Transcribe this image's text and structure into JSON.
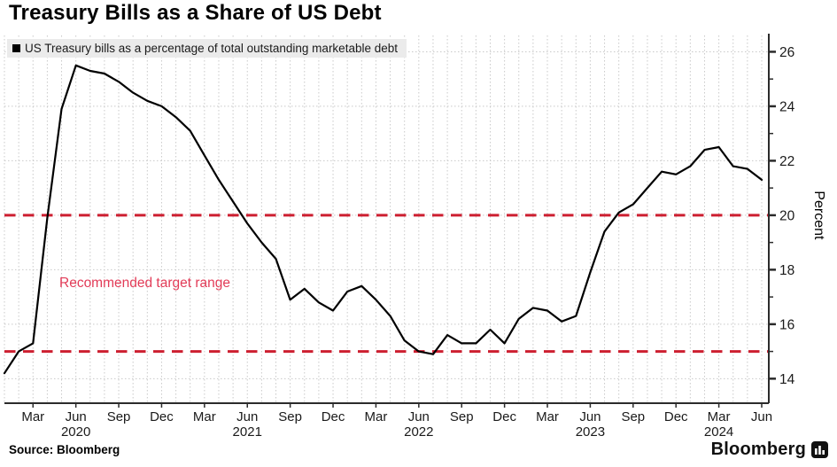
{
  "title": "Treasury Bills as a Share of US Debt",
  "legend": {
    "swatch": "black-square-swatch",
    "label": "US Treasury bills as a percentage of total outstanding marketable debt"
  },
  "annotation": {
    "text": "Recommended target range",
    "color": "#e23b57"
  },
  "source_line": "Source:  Bloomberg",
  "branding": {
    "wordmark": "Bloomberg",
    "icon": "bloomberg-bars-icon"
  },
  "colors": {
    "line": "#000000",
    "reference": "#cd1f30",
    "grid": "#c9c9c9",
    "axis": "#2b2b2b",
    "tick_text": "#1a1a1a",
    "legend_bg": "#ebebeb"
  },
  "chart_data": {
    "type": "line",
    "title": "Treasury Bills as a Share of US Debt",
    "ylabel": "Percent",
    "ylim": [
      13.1,
      26.6
    ],
    "yticks_major": [
      14,
      16,
      18,
      20,
      22,
      24,
      26
    ],
    "yticks_minor": [
      15,
      17,
      19,
      21,
      23,
      25
    ],
    "grid": "dotted, vertical line each month, horizontal line each major tick",
    "legend_position": "top-left",
    "reference_lines": [
      {
        "value": 20,
        "style": "dashed",
        "color": "#cd1f30",
        "label": "recommended range upper"
      },
      {
        "value": 15,
        "style": "dashed",
        "color": "#cd1f30",
        "label": "recommended range lower"
      }
    ],
    "x": [
      "2020-01",
      "2020-02",
      "2020-03",
      "2020-04",
      "2020-05",
      "2020-06",
      "2020-07",
      "2020-08",
      "2020-09",
      "2020-10",
      "2020-11",
      "2020-12",
      "2021-01",
      "2021-02",
      "2021-03",
      "2021-04",
      "2021-05",
      "2021-06",
      "2021-07",
      "2021-08",
      "2021-09",
      "2021-10",
      "2021-11",
      "2021-12",
      "2022-01",
      "2022-02",
      "2022-03",
      "2022-04",
      "2022-05",
      "2022-06",
      "2022-07",
      "2022-08",
      "2022-09",
      "2022-10",
      "2022-11",
      "2022-12",
      "2023-01",
      "2023-02",
      "2023-03",
      "2023-04",
      "2023-05",
      "2023-06",
      "2023-07",
      "2023-08",
      "2023-09",
      "2023-10",
      "2023-11",
      "2023-12",
      "2024-01",
      "2024-02",
      "2024-03",
      "2024-04",
      "2024-05",
      "2024-06"
    ],
    "series": [
      {
        "name": "US Treasury bills as a percentage of total outstanding marketable debt",
        "color": "#000000",
        "values": [
          14.2,
          15.0,
          15.3,
          19.9,
          23.9,
          25.5,
          25.3,
          25.2,
          24.9,
          24.5,
          24.2,
          24.0,
          23.6,
          23.1,
          22.2,
          21.3,
          20.5,
          19.7,
          19.0,
          18.4,
          16.9,
          17.3,
          16.8,
          16.5,
          17.2,
          17.4,
          16.9,
          16.3,
          15.4,
          15.0,
          14.9,
          15.6,
          15.3,
          15.3,
          15.8,
          15.3,
          16.2,
          16.6,
          16.5,
          16.1,
          16.3,
          17.9,
          19.4,
          20.1,
          20.4,
          21.0,
          21.6,
          21.5,
          21.8,
          22.4,
          22.5,
          21.8,
          21.7,
          21.3
        ]
      }
    ],
    "xticks": [
      {
        "label": "Mar",
        "index": 2
      },
      {
        "label": "Jun",
        "index": 5
      },
      {
        "label": "Sep",
        "index": 8
      },
      {
        "label": "Dec",
        "index": 11
      },
      {
        "label": "Mar",
        "index": 14
      },
      {
        "label": "Jun",
        "index": 17
      },
      {
        "label": "Sep",
        "index": 20
      },
      {
        "label": "Dec",
        "index": 23
      },
      {
        "label": "Mar",
        "index": 26
      },
      {
        "label": "Jun",
        "index": 29
      },
      {
        "label": "Sep",
        "index": 32
      },
      {
        "label": "Dec",
        "index": 35
      },
      {
        "label": "Mar",
        "index": 38
      },
      {
        "label": "Jun",
        "index": 41
      },
      {
        "label": "Sep",
        "index": 44
      },
      {
        "label": "Dec",
        "index": 47
      },
      {
        "label": "Mar",
        "index": 50
      },
      {
        "label": "Jun",
        "index": 53
      }
    ],
    "year_labels": [
      {
        "label": "2020",
        "index": 5
      },
      {
        "label": "2021",
        "index": 17
      },
      {
        "label": "2022",
        "index": 29
      },
      {
        "label": "2023",
        "index": 41
      },
      {
        "label": "2024",
        "index": 50
      }
    ]
  }
}
